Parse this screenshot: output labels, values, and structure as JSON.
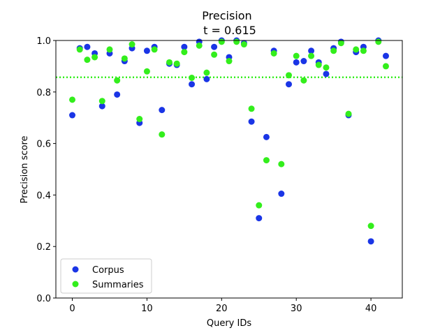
{
  "chart_data": {
    "type": "scatter",
    "title": "Precision",
    "subtitle": "t = 0.615",
    "xlabel": "Query IDs",
    "ylabel": "Precision score",
    "xlim": [
      -2.2,
      44.2
    ],
    "ylim": [
      0.0,
      1.0
    ],
    "xticks": [
      0,
      10,
      20,
      30,
      40
    ],
    "yticks": [
      0.0,
      0.2,
      0.4,
      0.6,
      0.8,
      1.0
    ],
    "xtick_labels": [
      "0",
      "10",
      "20",
      "30",
      "40"
    ],
    "ytick_labels": [
      "0.0",
      "0.2",
      "0.4",
      "0.6",
      "0.8",
      "1.0"
    ],
    "grid": false,
    "legend_position": "lower-left",
    "series": [
      {
        "name": "Corpus",
        "color": "#1a35e6",
        "x": [
          0,
          1,
          2,
          3,
          4,
          5,
          6,
          7,
          8,
          9,
          10,
          11,
          12,
          13,
          14,
          15,
          16,
          17,
          18,
          19,
          20,
          21,
          22,
          23,
          24,
          25,
          26,
          27,
          28,
          29,
          30,
          31,
          32,
          33,
          34,
          35,
          36,
          37,
          38,
          39,
          40,
          41,
          42
        ],
        "y": [
          0.71,
          0.97,
          0.975,
          0.95,
          0.745,
          0.95,
          0.79,
          0.92,
          0.97,
          0.68,
          0.96,
          0.975,
          0.73,
          0.91,
          0.905,
          0.975,
          0.83,
          0.995,
          0.85,
          0.975,
          1.0,
          0.935,
          1.0,
          0.99,
          0.685,
          0.31,
          0.625,
          0.96,
          0.405,
          0.83,
          0.915,
          0.92,
          0.96,
          0.915,
          0.87,
          0.97,
          0.995,
          0.71,
          0.955,
          0.975,
          0.22,
          1.0,
          0.94
        ]
      },
      {
        "name": "Summaries",
        "color": "#33ee1c",
        "x": [
          0,
          1,
          2,
          3,
          4,
          5,
          6,
          7,
          8,
          9,
          10,
          11,
          12,
          13,
          14,
          15,
          16,
          17,
          18,
          19,
          20,
          21,
          22,
          23,
          24,
          25,
          26,
          27,
          28,
          29,
          30,
          31,
          32,
          33,
          34,
          35,
          36,
          37,
          38,
          39,
          40,
          41,
          42
        ],
        "y": [
          0.77,
          0.965,
          0.925,
          0.935,
          0.765,
          0.965,
          0.845,
          0.93,
          0.985,
          0.695,
          0.88,
          0.965,
          0.635,
          0.915,
          0.91,
          0.955,
          0.855,
          0.98,
          0.875,
          0.945,
          0.995,
          0.92,
          0.995,
          0.985,
          0.735,
          0.36,
          0.535,
          0.95,
          0.52,
          0.865,
          0.94,
          0.845,
          0.94,
          0.905,
          0.895,
          0.96,
          0.99,
          0.715,
          0.965,
          0.96,
          0.28,
          0.995,
          0.9
        ]
      }
    ],
    "reference_lines": [
      {
        "axis": "y",
        "value": 0.857,
        "color": "#1a35e6",
        "style": "dotted"
      },
      {
        "axis": "y",
        "value": 0.857,
        "color": "#33ee1c",
        "style": "dotted"
      }
    ]
  }
}
